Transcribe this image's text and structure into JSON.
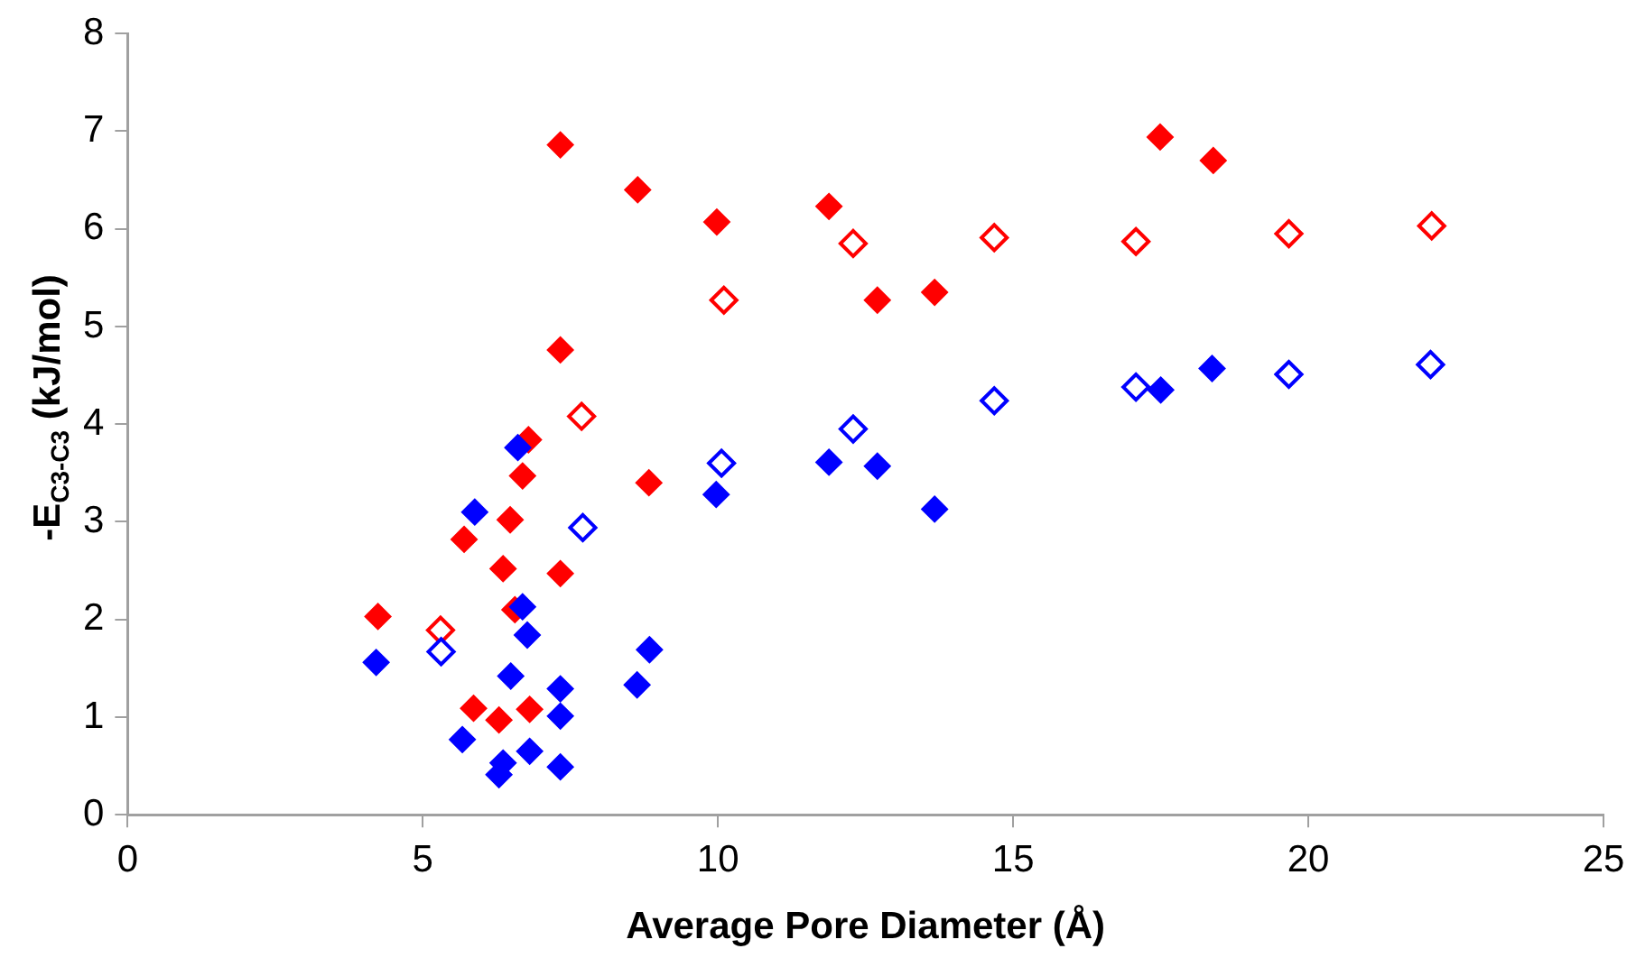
{
  "chart_data": {
    "type": "scatter",
    "xlabel": "Average Pore Diameter (Å)",
    "ylabel": "-E$_{C3-C3}$  (kJ/mol)",
    "xlim": [
      0,
      25
    ],
    "xticks": [
      0,
      5,
      10,
      15,
      20,
      25
    ],
    "ylim": [
      0,
      8
    ],
    "yticks": [
      0,
      1,
      2,
      3,
      4,
      5,
      6,
      7,
      8
    ],
    "grid": false,
    "legend": false,
    "marker": "diamond",
    "series": [
      {
        "color": "#ff0000",
        "x": [
          4.24,
          5.86,
          6.29,
          5.7,
          6.48,
          6.36,
          6.56,
          6.69,
          6.79,
          6.81,
          7.33,
          7.33,
          7.33,
          8.64,
          8.83,
          9.98,
          11.88,
          12.7,
          13.67,
          17.49,
          18.39
        ],
        "values": [
          2.03,
          1.09,
          0.97,
          2.82,
          3.02,
          2.52,
          2.1,
          3.47,
          3.84,
          1.08,
          2.47,
          4.76,
          6.86,
          6.4,
          3.4,
          6.07,
          6.23,
          5.27,
          5.35,
          6.94,
          6.7
        ]
      },
      {
        "color": "#ff0000",
        "x": [
          5.3,
          7.69,
          10.1,
          12.29,
          14.68,
          17.08,
          19.67,
          22.09
        ],
        "values": [
          1.89,
          4.08,
          5.27,
          5.85,
          5.91,
          5.87,
          5.95,
          6.03
        ]
      },
      {
        "color": "#0000ff",
        "x": [
          4.21,
          5.67,
          5.88,
          6.29,
          6.36,
          6.49,
          6.61,
          6.69,
          6.77,
          6.81,
          7.33,
          7.33,
          7.33,
          8.63,
          8.84,
          9.97,
          11.88,
          12.7,
          13.67,
          17.5,
          18.37
        ],
        "values": [
          1.56,
          0.77,
          3.1,
          0.41,
          0.53,
          1.42,
          3.76,
          2.13,
          1.84,
          0.65,
          1.29,
          1.01,
          0.49,
          1.33,
          1.69,
          3.28,
          3.61,
          3.57,
          3.13,
          4.35,
          4.57
        ]
      },
      {
        "color": "#0000ff",
        "x": [
          5.31,
          7.71,
          10.06,
          12.29,
          14.68,
          17.08,
          19.67,
          22.07
        ],
        "values": [
          1.67,
          2.94,
          3.6,
          3.95,
          4.24,
          4.38,
          4.51,
          4.61
        ]
      }
    ]
  }
}
